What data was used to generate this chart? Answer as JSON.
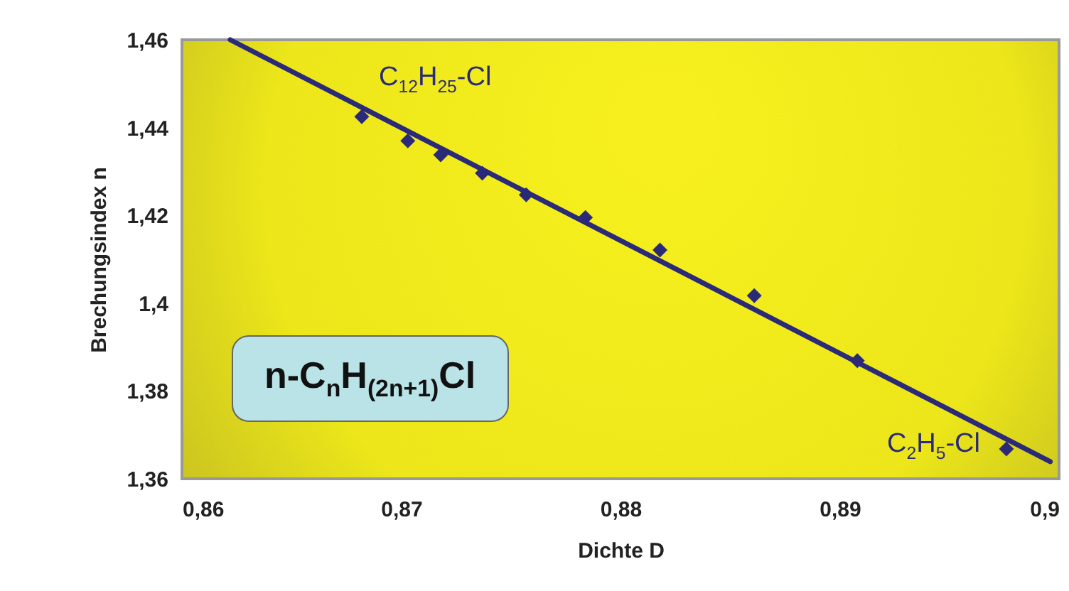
{
  "chart_data": {
    "type": "scatter",
    "xlabel": "Dichte D",
    "ylabel": "Brechungsindex n",
    "xlim": [
      0.86,
      0.9
    ],
    "xticks": [
      {
        "value": 0.86,
        "label": "0,86"
      },
      {
        "value": 0.87,
        "label": "0,87"
      },
      {
        "value": 0.88,
        "label": "0,88"
      },
      {
        "value": 0.89,
        "label": "0,89"
      },
      {
        "value": 0.9,
        "label": "0,9"
      }
    ],
    "ylim": [
      1.36,
      1.46
    ],
    "yticks": [
      {
        "value": 1.36,
        "label": "1,36"
      },
      {
        "value": 1.38,
        "label": "1,38"
      },
      {
        "value": 1.4,
        "label": "1,4"
      },
      {
        "value": 1.42,
        "label": "1,42"
      },
      {
        "value": 1.44,
        "label": "1,44"
      },
      {
        "value": 1.46,
        "label": "1,46"
      }
    ],
    "grid": false,
    "series": [
      {
        "type": "line",
        "color": "#2a2a78",
        "x": [
          0.8622,
          0.8996
        ],
        "values": [
          1.46,
          1.3639
        ]
      },
      {
        "marker": "diamond",
        "color": "#2a2a78",
        "x": [
          0.8682,
          0.8703,
          0.8718,
          0.8737,
          0.8757,
          0.8784,
          0.8818,
          0.8861,
          0.8908,
          0.8976
        ],
        "values": [
          1.4425,
          1.437,
          1.4338,
          1.4296,
          1.4247,
          1.4195,
          1.4121,
          1.4017,
          1.3869,
          1.3668
        ]
      }
    ],
    "annotations": [
      {
        "text": "C$_{12}$H$_{25}$-Cl",
        "x": 0.8682,
        "y": 1.4425
      },
      {
        "text": "C$_{2}$H$_{5}$-Cl",
        "x": 0.8976,
        "y": 1.3668
      },
      "n-C$_{n}$H$_{(2n+1)}$Cl"
    ]
  }
}
